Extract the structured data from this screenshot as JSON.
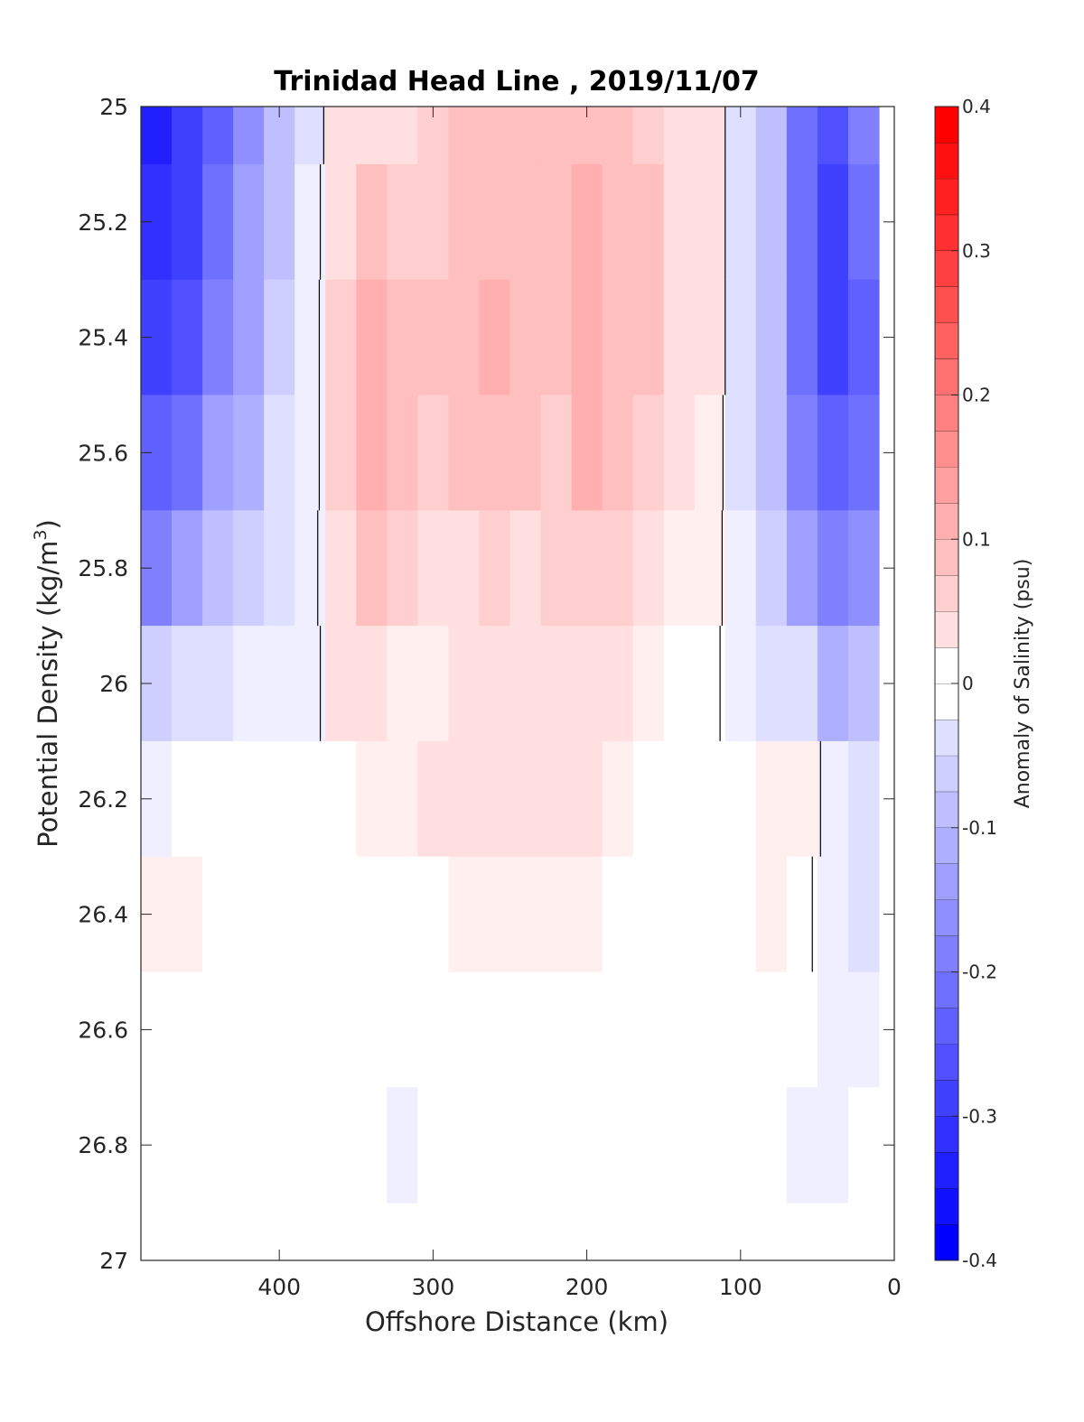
{
  "chart_data": {
    "type": "heatmap",
    "title": "Trinidad Head Line , 2019/11/07",
    "xlabel": "Offshore Distance (km)",
    "ylabel_main": "Potential Density (kg/m",
    "ylabel_sup": "3",
    "ylabel_close": ")",
    "colorbar_label": "Anomaly of Salinity (psu)",
    "xlim": [
      490,
      0
    ],
    "ylim": [
      25,
      27
    ],
    "y_reversed": true,
    "x_reversed": true,
    "xticks": [
      400,
      300,
      200,
      100,
      0
    ],
    "xtick_labels": [
      "400",
      "300",
      "200",
      "100",
      "0"
    ],
    "yticks": [
      25,
      25.2,
      25.4,
      25.6,
      25.8,
      26,
      26.2,
      26.4,
      26.6,
      26.8,
      27
    ],
    "ytick_labels": [
      "25",
      "25.2",
      "25.4",
      "25.6",
      "25.8",
      "26",
      "26.2",
      "26.4",
      "26.6",
      "26.8",
      "27"
    ],
    "clim": [
      -0.4,
      0.4
    ],
    "cticks": [
      -0.4,
      -0.3,
      -0.2,
      -0.1,
      0,
      0.1,
      0.2,
      0.3,
      0.4
    ],
    "ctick_labels": [
      "-0.4",
      "-0.3",
      "-0.2",
      "-0.1",
      "0",
      "0.1",
      "0.2",
      "0.3",
      "0.4"
    ],
    "contour_levels": 0.025,
    "colormap": "blue-white-red",
    "contour_line": [
      0
    ],
    "x": [
      480,
      460,
      440,
      420,
      400,
      380,
      360,
      340,
      320,
      300,
      280,
      260,
      240,
      220,
      200,
      180,
      160,
      140,
      120,
      100,
      80,
      60,
      40,
      20
    ],
    "y": [
      25.0,
      25.2,
      25.4,
      25.6,
      25.8,
      26.0,
      26.2,
      26.4,
      26.6,
      26.8
    ],
    "values": [
      [
        -0.34,
        -0.3,
        -0.24,
        -0.17,
        -0.1,
        -0.04,
        0.05,
        0.06,
        0.06,
        0.08,
        0.09,
        0.1,
        0.09,
        0.09,
        0.11,
        0.1,
        0.08,
        0.06,
        0.04,
        -0.04,
        -0.1,
        -0.22,
        -0.28,
        -0.2
      ],
      [
        -0.33,
        -0.29,
        -0.22,
        -0.16,
        -0.09,
        -0.03,
        0.06,
        0.1,
        0.08,
        0.08,
        0.1,
        0.11,
        0.1,
        0.09,
        0.12,
        0.11,
        0.1,
        0.06,
        0.04,
        -0.04,
        -0.1,
        -0.23,
        -0.29,
        -0.23
      ],
      [
        -0.3,
        -0.27,
        -0.2,
        -0.15,
        -0.08,
        -0.03,
        0.07,
        0.13,
        0.1,
        0.09,
        0.1,
        0.12,
        0.1,
        0.09,
        0.13,
        0.11,
        0.09,
        0.06,
        0.04,
        -0.04,
        -0.11,
        -0.23,
        -0.29,
        -0.24
      ],
      [
        -0.26,
        -0.22,
        -0.16,
        -0.12,
        -0.06,
        -0.03,
        0.07,
        0.13,
        0.1,
        0.08,
        0.09,
        0.1,
        0.09,
        0.08,
        0.12,
        0.1,
        0.08,
        0.05,
        0.03,
        -0.04,
        -0.09,
        -0.21,
        -0.26,
        -0.23
      ],
      [
        -0.2,
        -0.16,
        -0.1,
        -0.07,
        -0.04,
        -0.02,
        0.06,
        0.11,
        0.07,
        0.06,
        0.06,
        0.07,
        0.06,
        0.07,
        0.08,
        0.07,
        0.05,
        0.03,
        0.02,
        -0.03,
        -0.07,
        -0.16,
        -0.2,
        -0.18
      ],
      [
        -0.07,
        -0.06,
        -0.04,
        -0.03,
        -0.03,
        -0.02,
        0.04,
        0.05,
        0.03,
        0.03,
        0.04,
        0.05,
        0.05,
        0.06,
        0.06,
        0.05,
        0.03,
        0.01,
        0.01,
        -0.02,
        -0.05,
        -0.06,
        -0.12,
        -0.1
      ],
      [
        -0.02,
        0.0,
        0.0,
        0.0,
        0.0,
        -0.01,
        0.0,
        0.02,
        0.03,
        0.04,
        0.04,
        0.04,
        0.04,
        0.04,
        0.04,
        0.03,
        0.01,
        0.0,
        0.0,
        0.0,
        0.02,
        0.03,
        -0.02,
        -0.05
      ],
      [
        0.02,
        0.02,
        0.0,
        0.0,
        0.0,
        0.0,
        0.0,
        0.0,
        0.0,
        0.01,
        0.02,
        0.03,
        0.02,
        0.03,
        0.03,
        0.01,
        0.0,
        0.0,
        0.0,
        0.0,
        0.02,
        0.01,
        -0.02,
        -0.04
      ],
      [
        0.01,
        0.01,
        0.0,
        0.0,
        0.0,
        0.0,
        0.0,
        0.0,
        0.0,
        0.0,
        0.0,
        0.0,
        0.0,
        0.0,
        0.0,
        0.0,
        0.0,
        0.0,
        0.0,
        0.0,
        0.0,
        -0.01,
        -0.03,
        -0.02
      ],
      [
        0.01,
        0.01,
        0.0,
        0.0,
        0.0,
        0.0,
        0.01,
        0.0,
        -0.02,
        0.0,
        0.0,
        0.0,
        0.0,
        0.0,
        0.0,
        0.0,
        0.0,
        0.0,
        0.0,
        0.0,
        -0.01,
        -0.02,
        -0.03,
        -0.01
      ]
    ]
  }
}
